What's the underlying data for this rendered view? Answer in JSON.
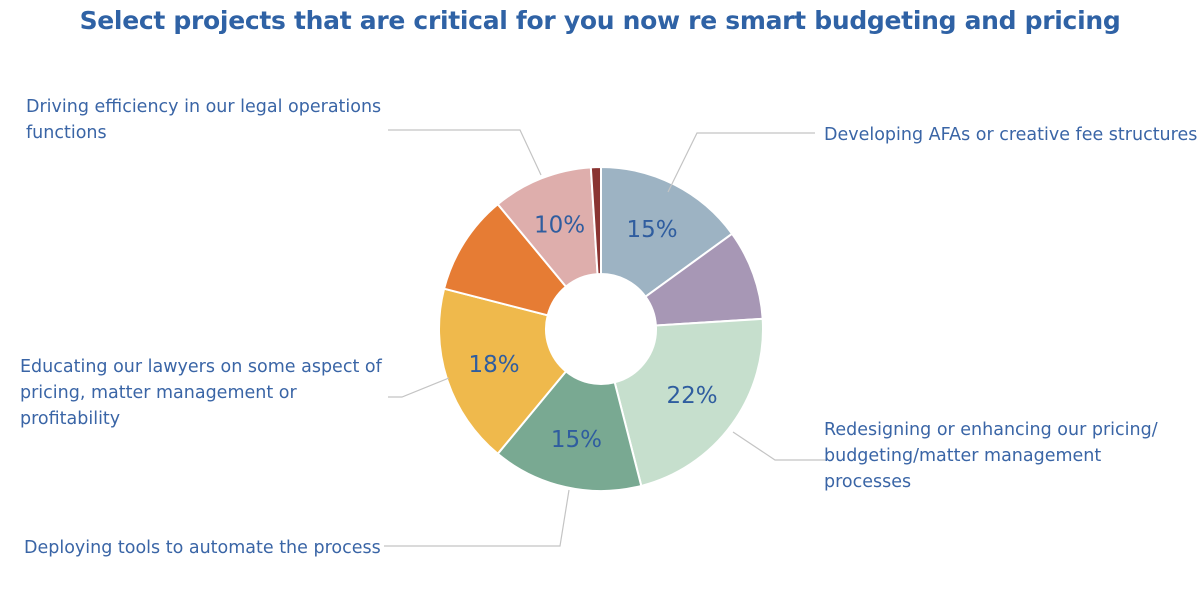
{
  "chart_data": {
    "type": "pie",
    "title": "Select projects that are critical for you now re smart budgeting and pricing",
    "slices": [
      {
        "label": "Developing AFAs or creative fee structures",
        "value": 15,
        "value_label": "15%",
        "color": "#9db3c3"
      },
      {
        "label": "",
        "value": 9,
        "value_label": "",
        "color": "#a797b5"
      },
      {
        "label": "Redesigning or enhancing our pricing/ budgeting/matter management processes",
        "value": 22,
        "value_label": "22%",
        "color": "#c6dfcd"
      },
      {
        "label": "Deploying tools to automate the process",
        "value": 15,
        "value_label": "15%",
        "color": "#79a992"
      },
      {
        "label": "Educating our lawyers on some aspect of pricing, matter management or profitability",
        "value": 18,
        "value_label": "18%",
        "color": "#efb94c"
      },
      {
        "label": "",
        "value": 10,
        "value_label": "",
        "color": "#e67c34"
      },
      {
        "label": "Driving efficiency in our legal operations functions",
        "value": 10,
        "value_label": "10%",
        "color": "#deaeac"
      },
      {
        "label": "",
        "value": 1,
        "value_label": "",
        "color": "#8a3432"
      }
    ]
  }
}
